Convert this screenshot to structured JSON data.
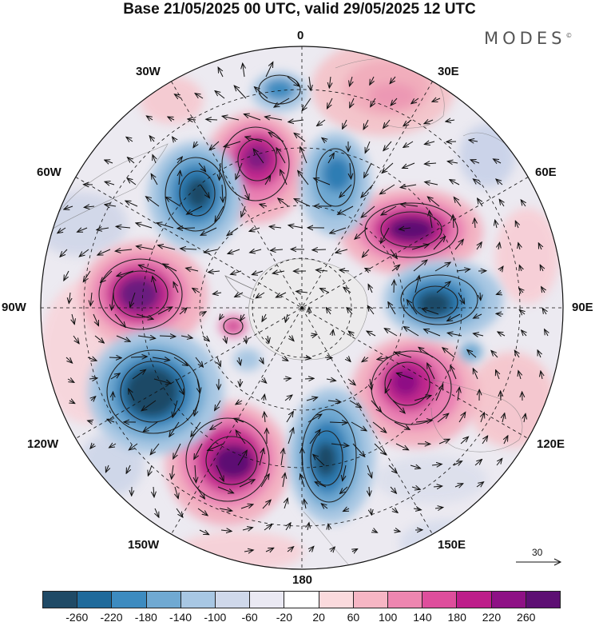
{
  "header": {
    "title": "Base 21/05/2025 00 UTC, valid 29/05/2025 12 UTC",
    "brand": "MODES",
    "brand_mark": "©"
  },
  "longitude_labels": {
    "lon_0": "0",
    "lon_30e": "30E",
    "lon_60e": "60E",
    "lon_90e": "90E",
    "lon_120e": "120E",
    "lon_150e": "150E",
    "lon_180": "180",
    "lon_150w": "150W",
    "lon_120w": "120W",
    "lon_90w": "90W",
    "lon_60w": "60W",
    "lon_30w": "30W"
  },
  "vector_scale": {
    "label": "30"
  },
  "colorbar": {
    "colors": [
      "#1f4a66",
      "#1f6a9b",
      "#3d8bc0",
      "#70a9d2",
      "#a8c7e3",
      "#cfd8ea",
      "#eae9f3",
      "#ffffff",
      "#fadadd",
      "#f6b6c4",
      "#ee86b0",
      "#de4e9c",
      "#bd1e8a",
      "#8e1185",
      "#5d0f73"
    ],
    "ticks": [
      "-260",
      "-220",
      "-180",
      "-140",
      "-100",
      "-60",
      "-20",
      "20",
      "60",
      "100",
      "140",
      "180",
      "220",
      "260"
    ]
  },
  "map": {
    "projection": "south polar stereographic",
    "field_colors": {
      "ocean_neutral": "#f1f0f3",
      "strong_pos": "#6b1a7f",
      "strong_neg": "#1f4a66"
    }
  }
}
